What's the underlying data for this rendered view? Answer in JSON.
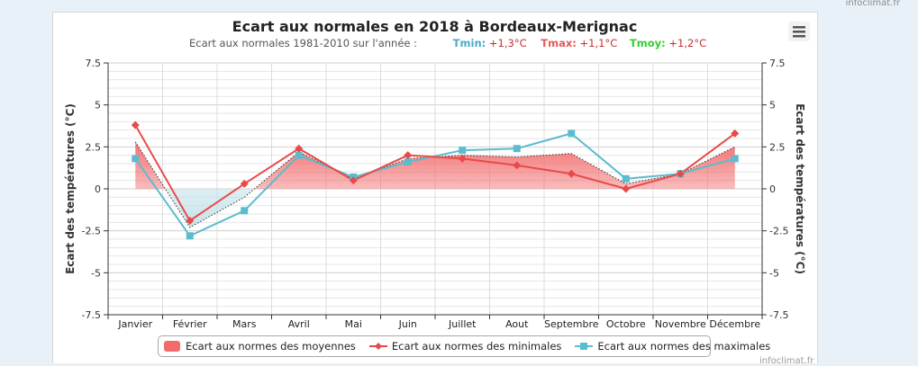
{
  "site_credit": "infoclimat.fr",
  "credit_bottom": "infoclimat.fr",
  "title": "Ecart aux normales en 2018 à Bordeaux-Merignac",
  "subtitle": {
    "prefix": "Ecart aux normales 1981-2010 sur l'année :",
    "tmin_label": "Tmin:",
    "tmin_value": "+1,3°C",
    "tmax_label": "Tmax:",
    "tmax_value": "+1,1°C",
    "tmoy_label": "Tmoy:",
    "tmoy_value": "+1,2°C"
  },
  "menu_icon": "hamburger-menu-icon",
  "legend": {
    "area": "Ecart aux normes des moyennes",
    "min": "Ecart aux normes des minimales",
    "max": "Ecart aux normes des maximales"
  },
  "colors": {
    "min_line": "#e84a4a",
    "max_line": "#5bbcd0",
    "area_fill": "#f26b6b",
    "dotted": "#333333",
    "grid": "#d6d6d6"
  },
  "chart_data": {
    "type": "line",
    "categories": [
      "Janvier",
      "Février",
      "Mars",
      "Avril",
      "Mai",
      "Juin",
      "Juillet",
      "Aout",
      "Septembre",
      "Octobre",
      "Novembre",
      "Décembre"
    ],
    "series": [
      {
        "name": "Ecart aux normes des moyennes",
        "kind": "area",
        "values": [
          2.8,
          -2.3,
          -0.5,
          2.2,
          0.6,
          1.8,
          2.0,
          1.9,
          2.1,
          0.3,
          0.9,
          2.5
        ]
      },
      {
        "name": "Ecart aux normes des minimales",
        "kind": "line",
        "marker": "diamond",
        "values": [
          3.8,
          -1.9,
          0.3,
          2.4,
          0.5,
          2.0,
          1.8,
          1.4,
          0.9,
          0.0,
          0.9,
          3.3
        ]
      },
      {
        "name": "Ecart aux normes des maximales",
        "kind": "line",
        "marker": "square",
        "values": [
          1.8,
          -2.8,
          -1.3,
          2.0,
          0.7,
          1.6,
          2.3,
          2.4,
          3.3,
          0.6,
          0.9,
          1.8
        ]
      }
    ],
    "ylabel_left": "Ecart des températures (°C)",
    "ylabel_right": "Ecart des températures (°C)",
    "ylim": [
      -7.5,
      7.5
    ],
    "yticks": [
      "7.5",
      "5",
      "2.5",
      "0",
      "-2.5",
      "-5",
      "-7.5"
    ],
    "grid": true,
    "legend_position": "bottom-center"
  }
}
